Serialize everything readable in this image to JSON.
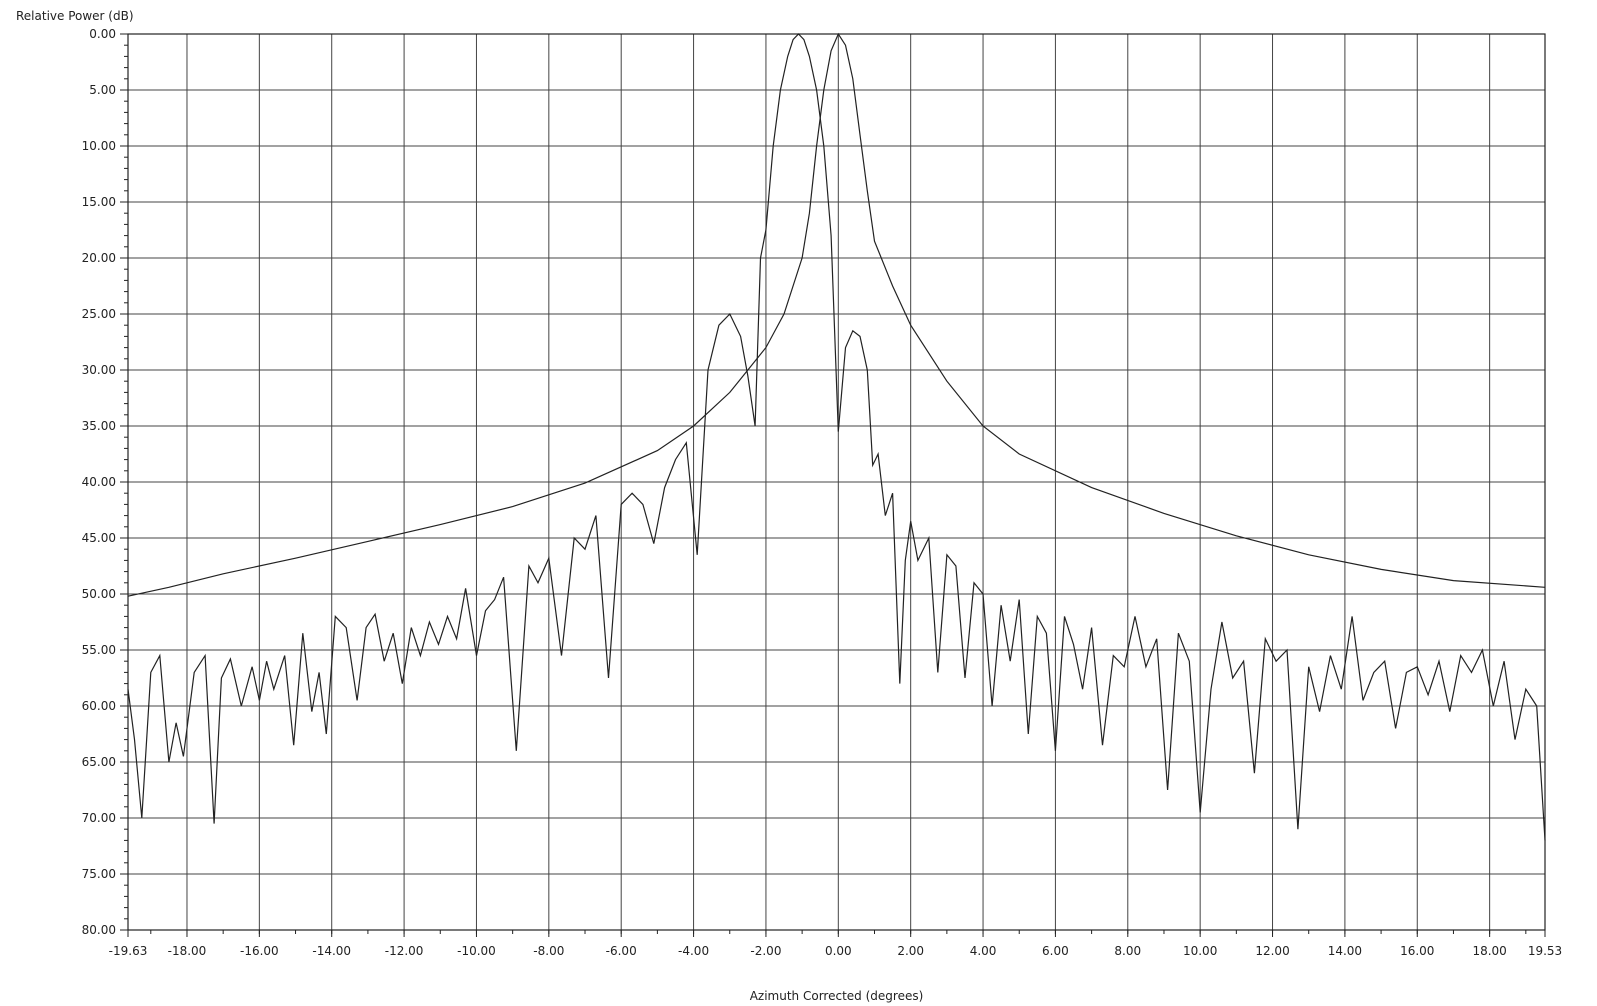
{
  "chart_data": {
    "type": "line",
    "title": "",
    "ylabel": "Relative Power (dB)",
    "xlabel": "Azimuth Corrected (degrees)",
    "xlim": [
      -19.63,
      19.53
    ],
    "ylim": [
      0,
      80
    ],
    "y_inverted": true,
    "grid": true,
    "x_ticks": [
      {
        "value": -19.63,
        "label": "-19.63"
      },
      {
        "value": -18,
        "label": "-18.00"
      },
      {
        "value": -16,
        "label": "-16.00"
      },
      {
        "value": -14,
        "label": "-14.00"
      },
      {
        "value": -12,
        "label": "-12.00"
      },
      {
        "value": -10,
        "label": "-10.00"
      },
      {
        "value": -8,
        "label": "-8.00"
      },
      {
        "value": -6,
        "label": "-6.00"
      },
      {
        "value": -4,
        "label": "-4.00"
      },
      {
        "value": -2,
        "label": "-2.00"
      },
      {
        "value": 0,
        "label": "0.00"
      },
      {
        "value": 2,
        "label": "2.00"
      },
      {
        "value": 4,
        "label": "4.00"
      },
      {
        "value": 6,
        "label": "6.00"
      },
      {
        "value": 8,
        "label": "8.00"
      },
      {
        "value": 10,
        "label": "10.00"
      },
      {
        "value": 12,
        "label": "12.00"
      },
      {
        "value": 14,
        "label": "14.00"
      },
      {
        "value": 16,
        "label": "16.00"
      },
      {
        "value": 18,
        "label": "18.00"
      },
      {
        "value": 19.53,
        "label": "19.53"
      }
    ],
    "y_ticks": [
      {
        "value": 0,
        "label": "0.00"
      },
      {
        "value": 5,
        "label": "5.00"
      },
      {
        "value": 10,
        "label": "10.00"
      },
      {
        "value": 15,
        "label": "15.00"
      },
      {
        "value": 20,
        "label": "20.00"
      },
      {
        "value": 25,
        "label": "25.00"
      },
      {
        "value": 30,
        "label": "30.00"
      },
      {
        "value": 35,
        "label": "35.00"
      },
      {
        "value": 40,
        "label": "40.00"
      },
      {
        "value": 45,
        "label": "45.00"
      },
      {
        "value": 50,
        "label": "50.00"
      },
      {
        "value": 55,
        "label": "55.00"
      },
      {
        "value": 60,
        "label": "60.00"
      },
      {
        "value": 65,
        "label": "65.00"
      },
      {
        "value": 70,
        "label": "70.00"
      },
      {
        "value": 75,
        "label": "75.00"
      },
      {
        "value": 80,
        "label": "80.00"
      }
    ],
    "x_grid": [
      -18,
      -16,
      -14,
      -12,
      -10,
      -8,
      -6,
      -4,
      -2,
      0,
      2,
      4,
      6,
      8,
      10,
      12,
      14,
      16,
      18
    ],
    "series": [
      {
        "x": [
          -19.63,
          -18.5,
          -17.0,
          -15.0,
          -13.0,
          -11.0,
          -9.0,
          -7.0,
          -5.0,
          -4.0,
          -3.0,
          -2.0,
          -1.5,
          -1.0,
          -0.8,
          -0.6,
          -0.4,
          -0.2,
          0.0,
          0.2,
          0.4,
          0.6,
          0.8,
          1.0,
          1.5,
          2.0,
          3.0,
          4.0,
          5.0,
          7.0,
          9.0,
          11.0,
          13.0,
          15.0,
          17.0,
          19.53
        ],
        "y": [
          50.2,
          49.4,
          48.2,
          46.8,
          45.3,
          43.8,
          42.2,
          40.1,
          37.2,
          35.0,
          32.0,
          28.0,
          25.0,
          20.0,
          16.0,
          10.0,
          5.0,
          1.5,
          0.0,
          1.0,
          4.0,
          9.0,
          14.0,
          18.5,
          22.5,
          26.0,
          31.0,
          35.0,
          37.5,
          40.5,
          42.8,
          44.8,
          46.5,
          47.8,
          48.8,
          49.4
        ],
        "color": "#222222"
      },
      {
        "x": [
          -19.63,
          -19.45,
          -19.25,
          -19.0,
          -18.75,
          -18.5,
          -18.3,
          -18.1,
          -17.8,
          -17.5,
          -17.25,
          -17.05,
          -16.8,
          -16.5,
          -16.2,
          -16.0,
          -15.8,
          -15.6,
          -15.3,
          -15.05,
          -14.8,
          -14.55,
          -14.35,
          -14.15,
          -13.9,
          -13.6,
          -13.3,
          -13.05,
          -12.8,
          -12.55,
          -12.3,
          -12.05,
          -11.8,
          -11.55,
          -11.3,
          -11.05,
          -10.8,
          -10.55,
          -10.3,
          -10.0,
          -9.75,
          -9.5,
          -9.25,
          -8.9,
          -8.55,
          -8.3,
          -8.0,
          -7.65,
          -7.3,
          -7.0,
          -6.7,
          -6.35,
          -6.0,
          -5.7,
          -5.4,
          -5.1,
          -4.8,
          -4.5,
          -4.2,
          -3.9,
          -3.6,
          -3.3,
          -3.0,
          -2.7,
          -2.5,
          -2.3,
          -2.15,
          -2.0,
          -1.8,
          -1.6,
          -1.4,
          -1.25,
          -1.1,
          -0.95,
          -0.8,
          -0.6,
          -0.4,
          -0.2,
          0.0,
          0.2,
          0.4,
          0.6,
          0.8,
          0.95,
          1.1,
          1.3,
          1.5,
          1.7,
          1.85,
          2.0,
          2.2,
          2.5,
          2.75,
          3.0,
          3.25,
          3.5,
          3.75,
          4.0,
          4.25,
          4.5,
          4.75,
          5.0,
          5.25,
          5.5,
          5.75,
          6.0,
          6.25,
          6.5,
          6.75,
          7.0,
          7.3,
          7.6,
          7.9,
          8.2,
          8.5,
          8.8,
          9.1,
          9.4,
          9.7,
          10.0,
          10.3,
          10.6,
          10.9,
          11.2,
          11.5,
          11.8,
          12.1,
          12.4,
          12.7,
          13.0,
          13.3,
          13.6,
          13.9,
          14.2,
          14.5,
          14.8,
          15.1,
          15.4,
          15.7,
          16.0,
          16.3,
          16.6,
          16.9,
          17.2,
          17.5,
          17.8,
          18.1,
          18.4,
          18.7,
          19.0,
          19.3,
          19.53
        ],
        "y": [
          58.5,
          63.0,
          70.0,
          57.0,
          55.5,
          65.0,
          61.5,
          64.5,
          57.0,
          55.5,
          70.5,
          57.5,
          55.8,
          60.0,
          56.5,
          59.5,
          56.0,
          58.5,
          55.5,
          63.5,
          53.5,
          60.5,
          57.0,
          62.5,
          52.0,
          53.0,
          59.5,
          53.0,
          51.8,
          56.0,
          53.5,
          58.0,
          53.0,
          55.5,
          52.5,
          54.5,
          52.0,
          54.0,
          49.5,
          55.5,
          51.5,
          50.5,
          48.5,
          64.0,
          47.5,
          49.0,
          46.8,
          55.5,
          45.0,
          46.0,
          43.0,
          57.5,
          42.0,
          41.0,
          42.0,
          45.5,
          40.5,
          38.0,
          36.5,
          46.5,
          30.0,
          26.0,
          25.0,
          27.0,
          30.5,
          35.0,
          20.0,
          17.5,
          10.0,
          5.0,
          2.0,
          0.5,
          0.0,
          0.5,
          2.0,
          5.0,
          10.0,
          18.0,
          35.5,
          28.0,
          26.5,
          27.0,
          30.0,
          38.5,
          37.5,
          43.0,
          41.0,
          58.0,
          47.0,
          43.5,
          47.0,
          45.0,
          57.0,
          46.5,
          47.5,
          57.5,
          49.0,
          50.0,
          60.0,
          51.0,
          56.0,
          50.5,
          62.5,
          52.0,
          53.5,
          64.0,
          52.0,
          54.5,
          58.5,
          53.0,
          63.5,
          55.5,
          56.5,
          52.0,
          56.5,
          54.0,
          67.5,
          53.5,
          56.0,
          69.5,
          58.5,
          52.5,
          57.5,
          56.0,
          66.0,
          54.0,
          56.0,
          55.0,
          71.0,
          56.5,
          60.5,
          55.5,
          58.5,
          52.0,
          59.5,
          57.0,
          56.0,
          62.0,
          57.0,
          56.5,
          59.0,
          56.0,
          60.5,
          55.5,
          57.0,
          55.0,
          60.0,
          56.0,
          63.0,
          58.5,
          60.0,
          72.0
        ],
        "color": "#222222"
      }
    ]
  }
}
